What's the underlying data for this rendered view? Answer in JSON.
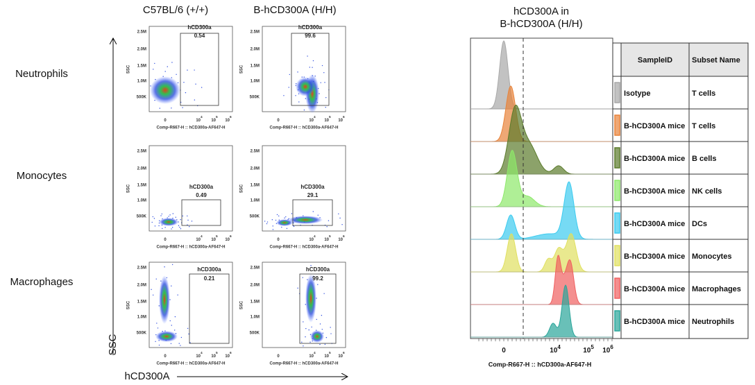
{
  "columns": [
    "C57BL/6 (+/+)",
    "B-hCD300A (H/H)"
  ],
  "rows": [
    "Neutrophils",
    "Monocytes",
    "Macrophages"
  ],
  "gate_label": "hCD300a",
  "gate_values": [
    [
      "0.54",
      "99.6"
    ],
    [
      "0.49",
      "29.1"
    ],
    [
      "0.21",
      "99.2"
    ]
  ],
  "dot_plot": {
    "y_label": "SSC",
    "y_ticks": [
      "2.5M",
      "2.0M",
      "1.5M",
      "1.0M",
      "500K"
    ],
    "x_ticks": [
      {
        "base": "0"
      },
      {
        "base": "10",
        "sup": "4"
      },
      {
        "base": "10",
        "sup": "5"
      },
      {
        "base": "10",
        "sup": "6"
      }
    ],
    "x_label": "Comp-R667-H :: hCD300a-AF647-H"
  },
  "axis_labels": {
    "y": "SSC",
    "x": "hCD300A"
  },
  "histogram": {
    "title": [
      "hCD300A in",
      "B-hCD300A (H/H)"
    ],
    "x_ticks": [
      {
        "base": "0"
      },
      {
        "base": "10",
        "sup": "4"
      },
      {
        "base": "10",
        "sup": "5"
      },
      {
        "base": "10",
        "sup": "6"
      }
    ],
    "x_label": "Comp-R667-H :: hCD300a-AF647-H"
  },
  "table": {
    "header": [
      "SampleID",
      "Subset Name"
    ],
    "rows": [
      {
        "sample": "Isotype",
        "subset": "T cells",
        "color": "#a8a8a8"
      },
      {
        "sample": "B-hCD300A mice",
        "subset": "T cells",
        "color": "#e8833a"
      },
      {
        "sample": "B-hCD300A mice",
        "subset": "B cells",
        "color": "#5b7b2b"
      },
      {
        "sample": "B-hCD300A mice",
        "subset": "NK cells",
        "color": "#8de86a"
      },
      {
        "sample": "B-hCD300A mice",
        "subset": "DCs",
        "color": "#3ccbef"
      },
      {
        "sample": "B-hCD300A mice",
        "subset": "Monocytes",
        "color": "#e0e060"
      },
      {
        "sample": "B-hCD300A mice",
        "subset": "Macrophages",
        "color": "#f06060"
      },
      {
        "sample": "B-hCD300A mice",
        "subset": "Neutrophils",
        "color": "#2aa59a"
      }
    ]
  }
}
